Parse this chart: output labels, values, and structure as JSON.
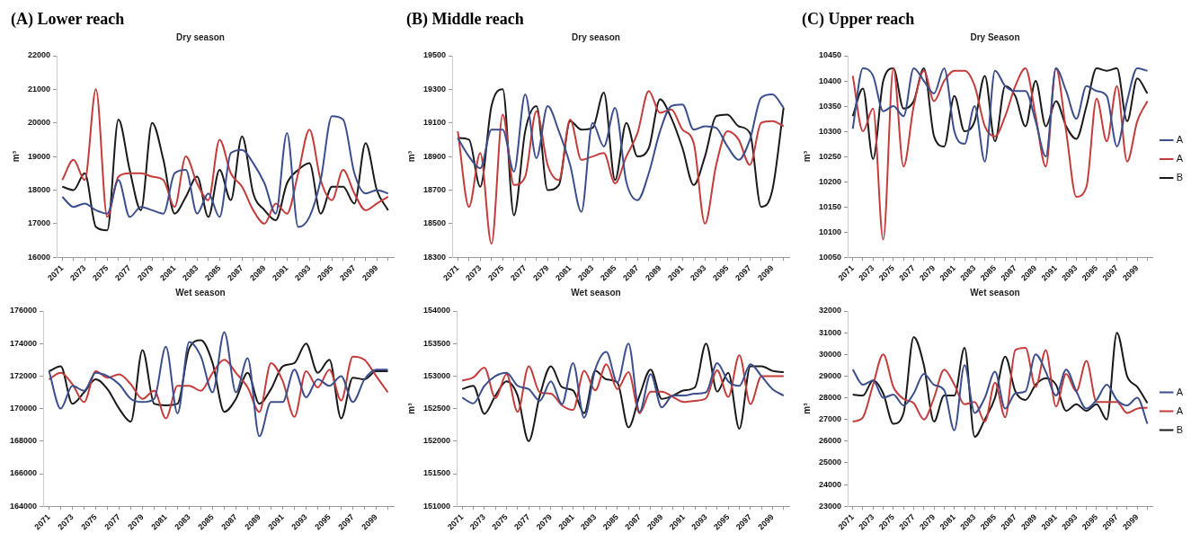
{
  "chart_data": [
    {
      "type": "line",
      "title": "(A) Lower reach",
      "subtitle": "Dry season",
      "ylabel": "m³",
      "marker": "none",
      "legend": false,
      "categories": [
        "2071",
        null,
        "2073",
        null,
        "2075",
        null,
        "2077",
        null,
        "2079",
        null,
        "2081",
        null,
        "2083",
        null,
        "2085",
        null,
        "2087",
        null,
        "2089",
        null,
        "2091",
        null,
        "2093",
        null,
        "2095",
        null,
        "2097",
        null,
        "2099",
        null
      ],
      "ylim": [
        16000,
        22000
      ],
      "yticks": [
        16000,
        17000,
        18000,
        19000,
        20000,
        21000,
        22000
      ],
      "series": [
        {
          "color": "#3c4e8c",
          "values": [
            17800,
            17500,
            17600,
            17400,
            17300,
            18300,
            17200,
            17500,
            17400,
            17300,
            18500,
            18600,
            17300,
            17900,
            17200,
            19100,
            19200,
            18800,
            18200,
            17300,
            19700,
            16900,
            17200,
            18300,
            20200,
            20100,
            18500,
            17900,
            18000,
            17900
          ]
        },
        {
          "color": "#c43c3c",
          "values": [
            18300,
            18900,
            18300,
            21000,
            17200,
            18400,
            18500,
            18500,
            18400,
            18300,
            17500,
            19000,
            18200,
            17700,
            19500,
            18500,
            18100,
            17400,
            17000,
            17600,
            17300,
            18500,
            19800,
            18300,
            17700,
            18600,
            17900,
            17400,
            17600,
            17800
          ]
        },
        {
          "color": "#1a1a1a",
          "values": [
            18100,
            18000,
            18500,
            16900,
            16800,
            20100,
            18600,
            17400,
            20000,
            18900,
            17300,
            17800,
            18400,
            17200,
            18600,
            17700,
            19600,
            17900,
            17400,
            17100,
            18200,
            18600,
            18800,
            17300,
            18100,
            18100,
            17600,
            19400,
            18000,
            17400
          ]
        }
      ]
    },
    {
      "type": "line",
      "title": "(B) Middle reach",
      "subtitle": "Dry season",
      "ylabel": "m³",
      "marker": "none",
      "legend": false,
      "categories": [
        "2071",
        null,
        "2073",
        null,
        "2075",
        null,
        "2077",
        null,
        "2079",
        null,
        "2081",
        null,
        "2083",
        null,
        "2085",
        null,
        "2087",
        null,
        "2089",
        null,
        "2091",
        null,
        "2093",
        null,
        "2095",
        null,
        "2097",
        null,
        "2099",
        null
      ],
      "ylim": [
        18300,
        19500
      ],
      "yticks": [
        18300,
        18500,
        18700,
        18900,
        19100,
        19300,
        19500
      ],
      "series": [
        {
          "color": "#3c4e8c",
          "values": [
            19010,
            18900,
            18830,
            19060,
            19060,
            18810,
            19270,
            18890,
            19200,
            19050,
            18850,
            18570,
            19100,
            18960,
            19190,
            18750,
            18640,
            18800,
            19050,
            19200,
            19210,
            19060,
            19080,
            19070,
            18960,
            18880,
            19000,
            19250,
            19270,
            19190
          ]
        },
        {
          "color": "#c43c3c",
          "values": [
            19050,
            18600,
            18920,
            18380,
            19150,
            18730,
            18780,
            19170,
            18850,
            18760,
            19120,
            18880,
            18900,
            18920,
            18740,
            18900,
            19040,
            19290,
            19160,
            19180,
            19060,
            18980,
            18500,
            18850,
            19050,
            19000,
            18850,
            19100,
            19110,
            19080
          ]
        },
        {
          "color": "#1a1a1a",
          "values": [
            19010,
            19000,
            18720,
            19200,
            19300,
            18550,
            19050,
            19200,
            18700,
            18730,
            19110,
            19060,
            19070,
            19280,
            18760,
            19100,
            18900,
            18950,
            19240,
            19130,
            18950,
            18730,
            18900,
            19140,
            19150,
            19080,
            19040,
            18600,
            18700,
            19190
          ]
        }
      ]
    },
    {
      "type": "line",
      "title": "(C) Upper reach",
      "subtitle": "Dry Season",
      "ylabel": "m³",
      "marker": "none",
      "legend": "right",
      "categories": [
        "2071",
        null,
        "2073",
        null,
        "2075",
        null,
        "2077",
        null,
        "2079",
        null,
        "2081",
        null,
        "2083",
        null,
        "2085",
        null,
        "2087",
        null,
        "2089",
        null,
        "2091",
        null,
        "2093",
        null,
        "2095",
        null,
        "2097",
        null,
        "2099",
        null
      ],
      "ylim": [
        10050,
        10450
      ],
      "yticks": [
        10050,
        10100,
        10150,
        10200,
        10250,
        10300,
        10350,
        10400,
        10450
      ],
      "series": [
        {
          "name": "A",
          "color": "#3c4e8c",
          "values": [
            10305,
            10425,
            10410,
            10340,
            10350,
            10330,
            10425,
            10400,
            10375,
            10425,
            10300,
            10275,
            10350,
            10240,
            10420,
            10390,
            10380,
            10380,
            10320,
            10250,
            10425,
            10380,
            10325,
            10390,
            10380,
            10370,
            10270,
            10360,
            10425,
            10420
          ]
        },
        {
          "name": "A",
          "color": "#c43c3c",
          "values": [
            10410,
            10300,
            10345,
            10085,
            10425,
            10230,
            10350,
            10420,
            10360,
            10400,
            10420,
            10420,
            10390,
            10310,
            10290,
            10330,
            10390,
            10425,
            10330,
            10230,
            10425,
            10300,
            10170,
            10190,
            10365,
            10280,
            10390,
            10240,
            10320,
            10360
          ]
        },
        {
          "name": "B",
          "color": "#1a1a1a",
          "values": [
            10330,
            10385,
            10245,
            10400,
            10425,
            10345,
            10360,
            10425,
            10290,
            10270,
            10370,
            10300,
            10320,
            10410,
            10280,
            10390,
            10370,
            10310,
            10400,
            10310,
            10360,
            10310,
            10285,
            10350,
            10425,
            10420,
            10425,
            10320,
            10405,
            10375
          ]
        }
      ]
    },
    {
      "type": "line",
      "subtitle": "Wet season",
      "marker": "none",
      "legend": false,
      "categories": [
        "2071",
        null,
        "2073",
        null,
        "2075",
        null,
        "2077",
        null,
        "2079",
        null,
        "2081",
        null,
        "2083",
        null,
        "2085",
        null,
        "2087",
        null,
        "2089",
        null,
        "2091",
        null,
        "2093",
        null,
        "2095",
        null,
        "2097",
        null,
        "2099",
        null
      ],
      "ylim": [
        164000,
        176000
      ],
      "yticks": [
        164000,
        166000,
        168000,
        170000,
        172000,
        174000,
        176000
      ],
      "series": [
        {
          "color": "#3c4e8c",
          "values": [
            172300,
            170000,
            171400,
            171100,
            172200,
            172000,
            171500,
            170600,
            170400,
            170600,
            173800,
            169700,
            174100,
            173200,
            171000,
            174700,
            171000,
            173100,
            168300,
            170400,
            170400,
            172400,
            170700,
            171800,
            171400,
            172000,
            170400,
            171800,
            172400,
            172400
          ]
        },
        {
          "color": "#c43c3c",
          "values": [
            171800,
            172200,
            171500,
            170400,
            172300,
            171900,
            172100,
            171500,
            170600,
            171100,
            169400,
            171400,
            171400,
            171100,
            172200,
            173000,
            172200,
            171300,
            169800,
            172800,
            171700,
            169500,
            172300,
            171300,
            172400,
            170500,
            173200,
            173000,
            172000,
            171000
          ]
        },
        {
          "color": "#1a1a1a",
          "values": [
            172300,
            172600,
            170300,
            171000,
            171800,
            171200,
            170000,
            169200,
            173600,
            170300,
            170200,
            170300,
            173700,
            174200,
            172800,
            169800,
            170600,
            172200,
            170300,
            171200,
            172600,
            172800,
            174000,
            172200,
            173000,
            169400,
            171900,
            171800,
            172300,
            172300
          ]
        }
      ]
    },
    {
      "type": "line",
      "subtitle": "Wet season",
      "ylabel": "m³",
      "marker": "none",
      "legend": false,
      "categories": [
        "2071",
        null,
        "2073",
        null,
        "2075",
        null,
        "2077",
        null,
        "2079",
        null,
        "2081",
        null,
        "2083",
        null,
        "2085",
        null,
        "2087",
        null,
        "2089",
        null,
        "2091",
        null,
        "2093",
        null,
        "2095",
        null,
        "2097",
        null,
        "2099",
        null
      ],
      "ylim": [
        151000,
        154000
      ],
      "yticks": [
        151000,
        151500,
        152000,
        152500,
        153000,
        153500,
        154000
      ],
      "series": [
        {
          "color": "#3c4e8c",
          "values": [
            152670,
            152580,
            152850,
            153000,
            153050,
            152850,
            152800,
            152620,
            152920,
            152570,
            153200,
            152360,
            153100,
            153370,
            152900,
            153500,
            152450,
            153030,
            152520,
            152700,
            152700,
            152730,
            152750,
            153200,
            152920,
            152850,
            153180,
            153000,
            152800,
            152700
          ]
        },
        {
          "color": "#c43c3c",
          "values": [
            152930,
            152980,
            153130,
            152660,
            153030,
            152450,
            153150,
            152750,
            152730,
            152550,
            152480,
            153080,
            152780,
            153180,
            152800,
            153060,
            152430,
            152760,
            152760,
            152680,
            152600,
            152620,
            152660,
            153090,
            152680,
            153320,
            152570,
            153000,
            153000,
            153000
          ]
        },
        {
          "color": "#1a1a1a",
          "values": [
            152800,
            152850,
            152420,
            152700,
            152920,
            152700,
            152000,
            152700,
            153150,
            152830,
            152780,
            152430,
            153080,
            152950,
            152900,
            152210,
            152700,
            153100,
            152650,
            152700,
            152780,
            152830,
            153500,
            152760,
            153050,
            152190,
            153150,
            153150,
            153080,
            153060
          ]
        }
      ]
    },
    {
      "type": "line",
      "subtitle": "Wet season",
      "ylabel": "m³",
      "marker": "none",
      "legend": "right",
      "categories": [
        "2071",
        null,
        "2073",
        null,
        "2075",
        null,
        "2077",
        null,
        "2079",
        null,
        "2081",
        null,
        "2083",
        null,
        "2085",
        null,
        "2087",
        null,
        "2089",
        null,
        "2091",
        null,
        "2093",
        null,
        "2095",
        null,
        "2097",
        null,
        "2099",
        null
      ],
      "ylim": [
        23000,
        32000
      ],
      "yticks": [
        23000,
        24000,
        25000,
        26000,
        27000,
        28000,
        29000,
        30000,
        31000,
        32000
      ],
      "series": [
        {
          "name": "A",
          "color": "#3c4e8c",
          "values": [
            29300,
            28600,
            28800,
            28000,
            28150,
            27650,
            28200,
            29100,
            28600,
            28350,
            26500,
            29500,
            27300,
            28000,
            29200,
            27500,
            28200,
            28300,
            30000,
            29200,
            28100,
            29300,
            28300,
            27500,
            27900,
            28600,
            27900,
            27650,
            28000,
            26800
          ]
        },
        {
          "name": "A",
          "color": "#c43c3c",
          "values": [
            26900,
            27100,
            28600,
            30000,
            28500,
            27950,
            27750,
            27000,
            28000,
            29300,
            28600,
            27700,
            27800,
            26900,
            28700,
            27100,
            30200,
            30300,
            28500,
            30200,
            27600,
            29100,
            28300,
            29700,
            27800,
            27800,
            27800,
            27300,
            27500,
            27550
          ]
        },
        {
          "name": "B",
          "color": "#1a1a1a",
          "values": [
            28150,
            28100,
            28800,
            28200,
            26800,
            27300,
            30800,
            29500,
            26900,
            28100,
            28100,
            30300,
            26200,
            27000,
            28000,
            29900,
            28300,
            27900,
            28600,
            28900,
            28600,
            27400,
            27700,
            27400,
            27700,
            27000,
            31000,
            29000,
            28500,
            27750
          ]
        }
      ]
    }
  ]
}
